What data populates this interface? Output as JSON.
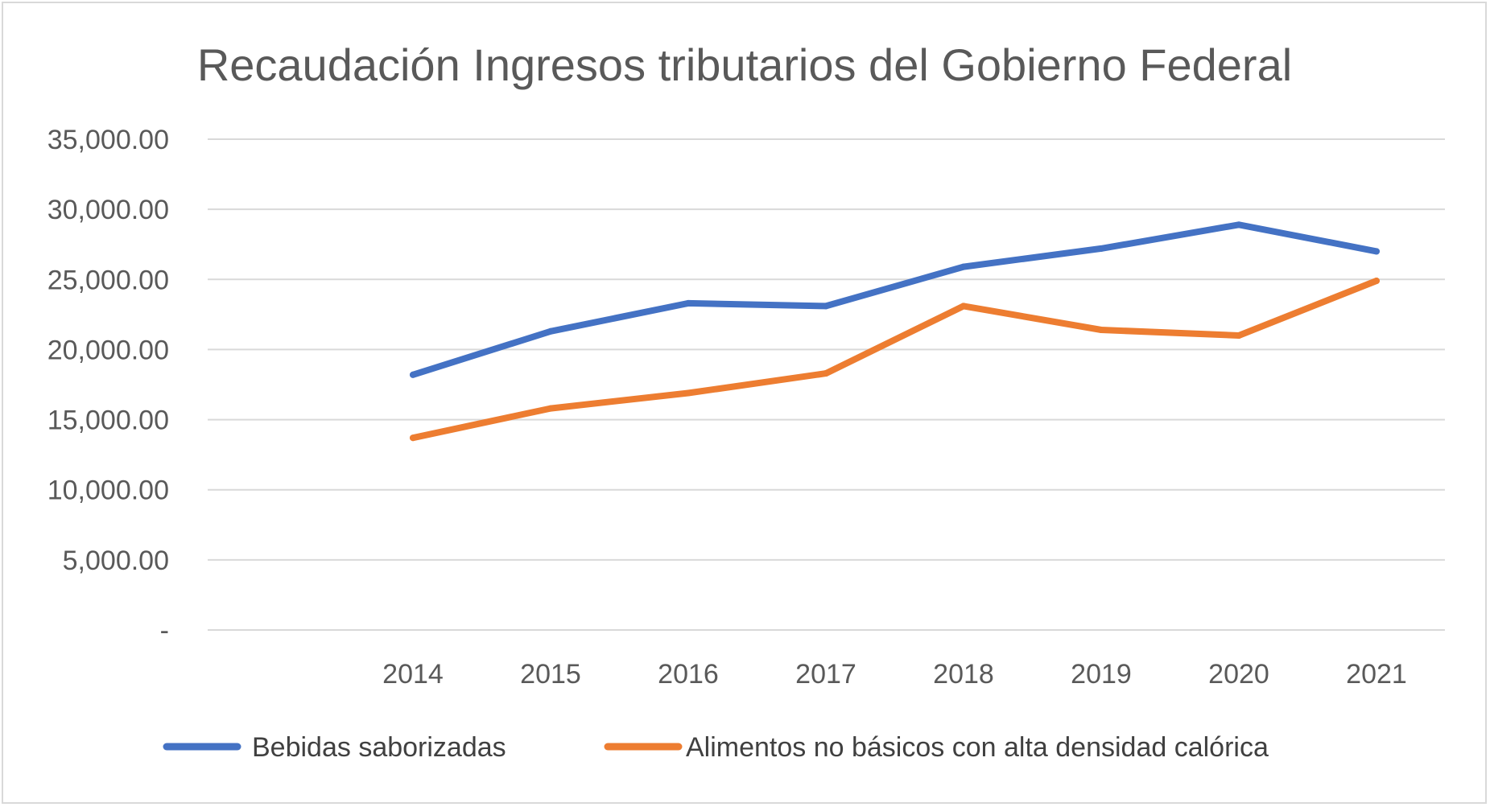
{
  "chart_data": {
    "type": "line",
    "title": "Recaudación Ingresos tributarios del Gobierno Federal",
    "categories": [
      "2014",
      "2015",
      "2016",
      "2017",
      "2018",
      "2019",
      "2020",
      "2021"
    ],
    "series": [
      {
        "name": "Bebidas saborizadas",
        "color": "#4472C4",
        "values": [
          18200,
          21300,
          23300,
          23100,
          25900,
          27200,
          28900,
          27000
        ]
      },
      {
        "name": "Alimentos no básicos con alta densidad calórica",
        "color": "#ED7D31",
        "values": [
          13700,
          15800,
          16900,
          18300,
          23100,
          21400,
          21000,
          24900
        ]
      }
    ],
    "ylim": [
      0,
      35000
    ],
    "yticks": [
      {
        "value": 0,
        "label": "-"
      },
      {
        "value": 5000,
        "label": "5,000.00"
      },
      {
        "value": 10000,
        "label": "10,000.00"
      },
      {
        "value": 15000,
        "label": "15,000.00"
      },
      {
        "value": 20000,
        "label": "20,000.00"
      },
      {
        "value": 25000,
        "label": "25,000.00"
      },
      {
        "value": 30000,
        "label": "30,000.00"
      },
      {
        "value": 35000,
        "label": "35,000.00"
      }
    ],
    "grid": true,
    "legend": "bottom"
  }
}
